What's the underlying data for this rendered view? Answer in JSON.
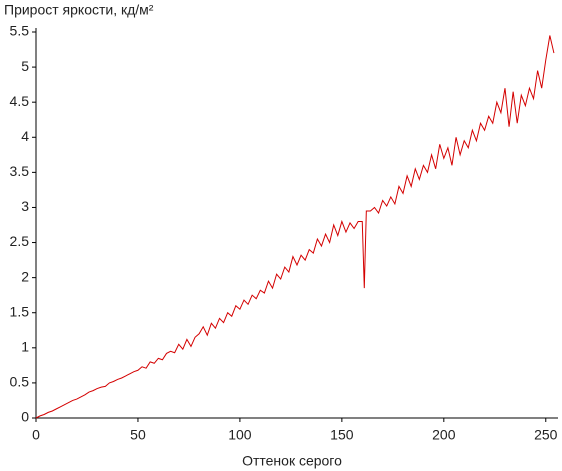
{
  "chart_data": {
    "type": "line",
    "title": "Прирост яркости, кд/м²",
    "x_label": "Оттенок серого",
    "x": [
      0,
      2,
      4,
      6,
      8,
      10,
      12,
      14,
      16,
      18,
      20,
      22,
      24,
      26,
      28,
      30,
      32,
      34,
      36,
      38,
      40,
      42,
      44,
      46,
      48,
      50,
      52,
      54,
      56,
      58,
      60,
      62,
      64,
      66,
      68,
      70,
      72,
      74,
      76,
      78,
      80,
      82,
      84,
      86,
      88,
      90,
      92,
      94,
      96,
      98,
      100,
      102,
      104,
      106,
      108,
      110,
      112,
      114,
      116,
      118,
      120,
      122,
      124,
      126,
      128,
      130,
      132,
      134,
      136,
      138,
      140,
      142,
      144,
      146,
      148,
      150,
      152,
      154,
      156,
      158,
      160,
      161,
      162,
      164,
      166,
      168,
      170,
      172,
      174,
      176,
      178,
      180,
      182,
      184,
      186,
      188,
      190,
      192,
      194,
      196,
      198,
      200,
      202,
      204,
      206,
      208,
      210,
      212,
      214,
      216,
      218,
      220,
      222,
      224,
      226,
      228,
      230,
      232,
      234,
      236,
      238,
      240,
      242,
      244,
      246,
      248,
      250,
      252,
      254
    ],
    "series": [
      {
        "name": "Прирост яркости",
        "color": "#d40000",
        "values": [
          0.0,
          0.03,
          0.05,
          0.08,
          0.1,
          0.13,
          0.16,
          0.19,
          0.22,
          0.25,
          0.27,
          0.3,
          0.33,
          0.37,
          0.39,
          0.42,
          0.44,
          0.45,
          0.5,
          0.52,
          0.55,
          0.57,
          0.6,
          0.63,
          0.66,
          0.68,
          0.73,
          0.71,
          0.8,
          0.78,
          0.85,
          0.83,
          0.92,
          0.95,
          0.93,
          1.05,
          0.98,
          1.12,
          1.02,
          1.15,
          1.2,
          1.3,
          1.18,
          1.35,
          1.28,
          1.42,
          1.36,
          1.5,
          1.45,
          1.6,
          1.55,
          1.68,
          1.62,
          1.75,
          1.7,
          1.82,
          1.78,
          1.95,
          1.85,
          2.05,
          1.98,
          2.15,
          2.08,
          2.3,
          2.18,
          2.32,
          2.25,
          2.4,
          2.35,
          2.55,
          2.45,
          2.62,
          2.5,
          2.75,
          2.6,
          2.8,
          2.65,
          2.78,
          2.7,
          2.8,
          2.8,
          1.85,
          2.95,
          2.95,
          3.0,
          2.92,
          3.1,
          3.02,
          3.15,
          3.05,
          3.3,
          3.2,
          3.45,
          3.3,
          3.55,
          3.4,
          3.6,
          3.5,
          3.75,
          3.55,
          3.9,
          3.7,
          3.85,
          3.6,
          4.0,
          3.75,
          3.95,
          3.85,
          4.1,
          3.95,
          4.2,
          4.1,
          4.3,
          4.2,
          4.5,
          4.35,
          4.7,
          4.15,
          4.65,
          4.2,
          4.6,
          4.45,
          4.7,
          4.55,
          4.95,
          4.7,
          5.1,
          5.45,
          5.2
        ]
      }
    ],
    "xlim": [
      0,
      256
    ],
    "xticks": [
      0,
      50,
      100,
      150,
      200,
      250
    ],
    "ylim": [
      0,
      5.5
    ],
    "yticks": [
      0,
      0.5,
      1,
      1.5,
      2,
      2.5,
      3,
      3.5,
      4,
      4.5,
      5,
      5.5
    ],
    "grid": false
  }
}
